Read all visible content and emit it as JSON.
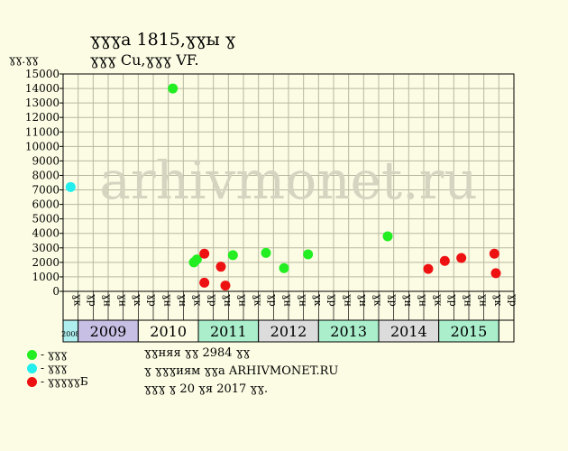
{
  "header": {
    "title_line1": "ɣɣɣa 1815,ɣɣы ɣ",
    "title_line2": "ɣɣɣ Cu,ɣɣɣ VF.",
    "y_unit": "ɣɣ.ɣɣ"
  },
  "watermark": "arhivmonet.ru",
  "legend": [
    {
      "label": "- ɣɣɣ",
      "color": "#22ee22"
    },
    {
      "label": "- ɣɣɣ",
      "color": "#22eeee"
    },
    {
      "label": "- ɣɣɣɣɣБ",
      "color": "#ee1111"
    }
  ],
  "footer": {
    "line1": "ɣɣняя ɣɣ 2984 ɣɣ",
    "line2": "ɣ ɣɣɣиям ɣɣa ARHIVMONET.RU",
    "line3": "ɣɣɣ ɣ 20 ɣя 2017 ɣɣ."
  },
  "chart_data": {
    "type": "scatter",
    "ylim": [
      0,
      15000
    ],
    "yticks": [
      0,
      1000,
      2000,
      3000,
      4000,
      5000,
      6000,
      7000,
      8000,
      9000,
      10000,
      11000,
      12000,
      13000,
      14000,
      15000
    ],
    "grid": true,
    "x_start_label": "ɣк",
    "x_month_labels": [
      "ɣр",
      "ɣн",
      "ɣн",
      "ɣк"
    ],
    "years": [
      {
        "label": "2008",
        "slots": 1,
        "color": "#aeeeee"
      },
      {
        "label": "2009",
        "slots": 4,
        "color": "#c8c0e4"
      },
      {
        "label": "2010",
        "slots": 4,
        "color": "#fcfce4"
      },
      {
        "label": "2011",
        "slots": 4,
        "color": "#aaeecc"
      },
      {
        "label": "2012",
        "slots": 4,
        "color": "#dcdcdc"
      },
      {
        "label": "2013",
        "slots": 4,
        "color": "#aaeecc"
      },
      {
        "label": "2014",
        "slots": 4,
        "color": "#dcdcdc"
      },
      {
        "label": "2015",
        "slots": 4,
        "color": "#aaeecc"
      },
      {
        "label": "",
        "slots": 1,
        "color": "#fcfce4"
      }
    ],
    "series": [
      {
        "name": "ɣɣɣ",
        "color": "#22ee22",
        "points": [
          [
            7.3,
            14000
          ],
          [
            8.7,
            2000
          ],
          [
            8.9,
            2200
          ],
          [
            11.3,
            2500
          ],
          [
            13.5,
            2650
          ],
          [
            14.7,
            1600
          ],
          [
            16.3,
            2550
          ],
          [
            21.6,
            3800
          ]
        ]
      },
      {
        "name": "ɣɣɣ",
        "color": "#22eeee",
        "points": [
          [
            0.5,
            7200
          ]
        ]
      },
      {
        "name": "ɣɣɣɣɣБ",
        "color": "#ee1111",
        "points": [
          [
            9.4,
            2600
          ],
          [
            9.4,
            600
          ],
          [
            10.5,
            1700
          ],
          [
            10.8,
            400
          ],
          [
            24.3,
            1550
          ],
          [
            25.4,
            2100
          ],
          [
            26.5,
            2300
          ],
          [
            28.7,
            2600
          ],
          [
            28.8,
            1250
          ]
        ]
      }
    ]
  }
}
